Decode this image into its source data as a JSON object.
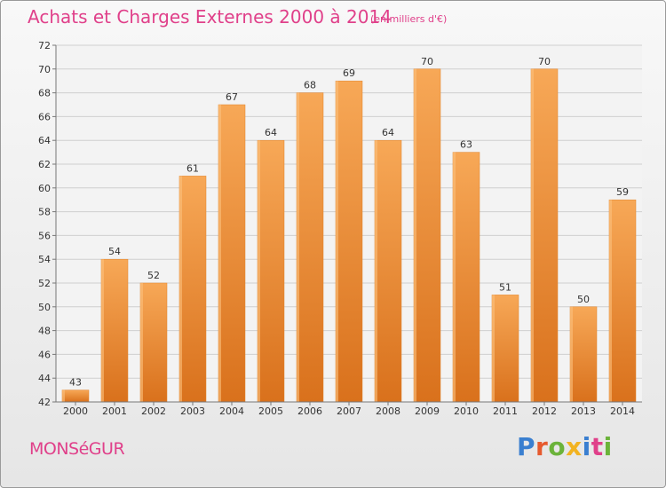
{
  "chart_data": {
    "type": "bar",
    "title": "Achats et Charges Externes 2000 à 2014",
    "subtitle": "(en milliers d'€)",
    "xlabel": "",
    "ylabel": "",
    "categories": [
      "2000",
      "2001",
      "2002",
      "2003",
      "2004",
      "2005",
      "2006",
      "2007",
      "2008",
      "2009",
      "2010",
      "2011",
      "2012",
      "2013",
      "2014"
    ],
    "values": [
      43,
      54,
      52,
      61,
      67,
      64,
      68,
      69,
      64,
      70,
      63,
      51,
      70,
      50,
      59
    ],
    "ylim": [
      42,
      72
    ],
    "yticks": [
      42,
      44,
      46,
      48,
      50,
      52,
      54,
      56,
      58,
      60,
      62,
      64,
      66,
      68,
      70,
      72
    ],
    "grid": true,
    "bar_color": "#f0892e",
    "bar_color_light": "#f7a857",
    "bar_color_dark": "#d9711c"
  },
  "footer": {
    "commune": "MONSéGUR",
    "brand": "Proxiti",
    "brand_colors": [
      "#3a7fd0",
      "#e65a2e",
      "#6bb33a",
      "#f2b320",
      "#3a7fd0",
      "#e0408a",
      "#6bb33a"
    ]
  }
}
